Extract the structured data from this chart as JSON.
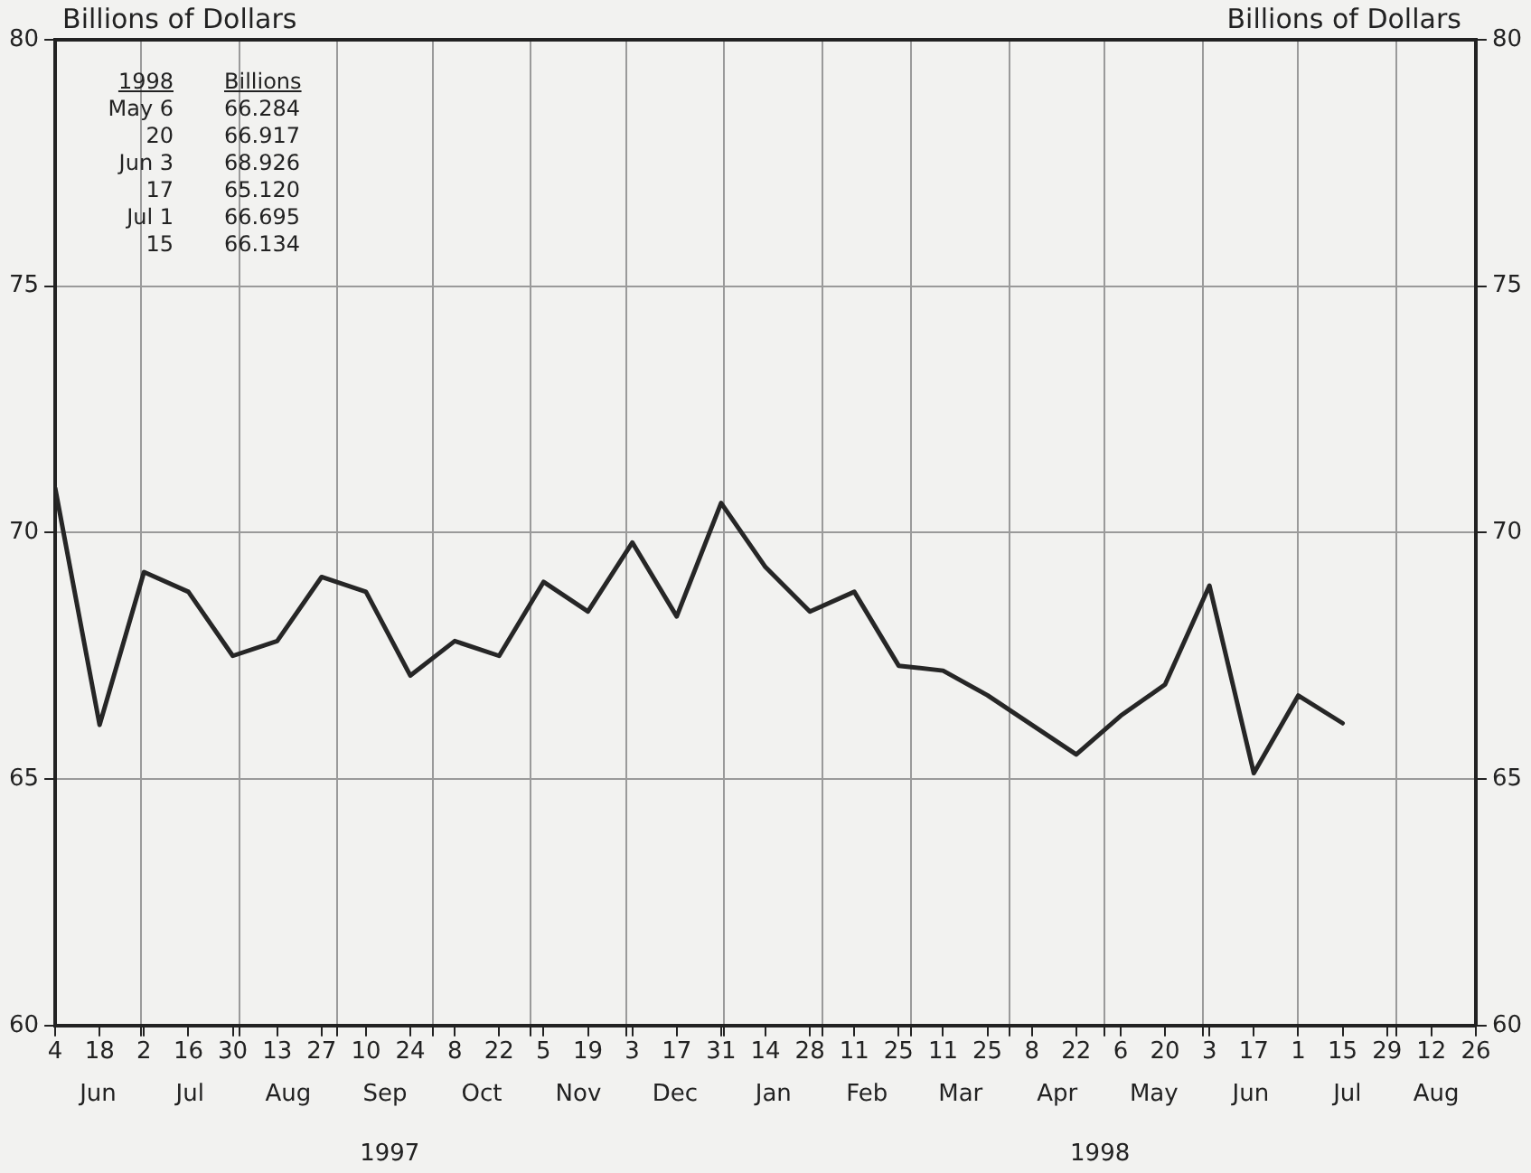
{
  "chart_data": {
    "type": "line",
    "ylabel": "Billions of Dollars",
    "y2label": "Billions of Dollars",
    "x": [
      "1997-06-04",
      "1997-06-18",
      "1997-07-02",
      "1997-07-16",
      "1997-07-30",
      "1997-08-13",
      "1997-08-27",
      "1997-09-10",
      "1997-09-24",
      "1997-10-08",
      "1997-10-22",
      "1997-11-05",
      "1997-11-19",
      "1997-12-03",
      "1997-12-17",
      "1997-12-31",
      "1998-01-14",
      "1998-01-28",
      "1998-02-11",
      "1998-02-25",
      "1998-03-11",
      "1998-03-25",
      "1998-04-08",
      "1998-04-22",
      "1998-05-06",
      "1998-05-20",
      "1998-06-03",
      "1998-06-17",
      "1998-07-01",
      "1998-07-15"
    ],
    "series": [
      {
        "color": "#262626",
        "values": [
          70.9,
          66.1,
          69.2,
          68.8,
          67.5,
          67.8,
          69.1,
          68.8,
          67.1,
          67.8,
          67.5,
          69.0,
          68.4,
          69.8,
          68.3,
          70.6,
          69.3,
          68.4,
          68.8,
          67.3,
          67.2,
          66.7,
          66.1,
          65.5,
          66.284,
          66.917,
          68.926,
          65.12,
          66.695,
          66.134
        ]
      }
    ],
    "xlim": [
      "1997-06-04",
      "1998-08-26"
    ],
    "xticks": [
      {
        "value": "1997-06-04",
        "label": "4"
      },
      {
        "value": "1997-06-18",
        "label": "18"
      },
      {
        "value": "1997-07-01",
        "label": null
      },
      {
        "value": "1997-07-02",
        "label": "2"
      },
      {
        "value": "1997-07-16",
        "label": "16"
      },
      {
        "value": "1997-07-30",
        "label": "30"
      },
      {
        "value": "1997-08-01",
        "label": null
      },
      {
        "value": "1997-08-13",
        "label": "13"
      },
      {
        "value": "1997-08-27",
        "label": "27"
      },
      {
        "value": "1997-09-01",
        "label": null
      },
      {
        "value": "1997-09-10",
        "label": "10"
      },
      {
        "value": "1997-09-24",
        "label": "24"
      },
      {
        "value": "1997-10-01",
        "label": null
      },
      {
        "value": "1997-10-08",
        "label": "8"
      },
      {
        "value": "1997-10-22",
        "label": "22"
      },
      {
        "value": "1997-11-01",
        "label": null
      },
      {
        "value": "1997-11-05",
        "label": "5"
      },
      {
        "value": "1997-11-19",
        "label": "19"
      },
      {
        "value": "1997-12-01",
        "label": null
      },
      {
        "value": "1997-12-03",
        "label": "3"
      },
      {
        "value": "1997-12-17",
        "label": "17"
      },
      {
        "value": "1997-12-31",
        "label": "31"
      },
      {
        "value": "1998-01-01",
        "label": null
      },
      {
        "value": "1998-01-14",
        "label": "14"
      },
      {
        "value": "1998-01-28",
        "label": "28"
      },
      {
        "value": "1998-02-01",
        "label": null
      },
      {
        "value": "1998-02-11",
        "label": "11"
      },
      {
        "value": "1998-02-25",
        "label": "25"
      },
      {
        "value": "1998-03-01",
        "label": null
      },
      {
        "value": "1998-03-11",
        "label": "11"
      },
      {
        "value": "1998-03-25",
        "label": "25"
      },
      {
        "value": "1998-04-01",
        "label": null
      },
      {
        "value": "1998-04-08",
        "label": "8"
      },
      {
        "value": "1998-04-22",
        "label": "22"
      },
      {
        "value": "1998-05-01",
        "label": null
      },
      {
        "value": "1998-05-06",
        "label": "6"
      },
      {
        "value": "1998-05-20",
        "label": "20"
      },
      {
        "value": "1998-06-01",
        "label": null
      },
      {
        "value": "1998-06-03",
        "label": "3"
      },
      {
        "value": "1998-06-17",
        "label": "17"
      },
      {
        "value": "1998-07-01",
        "label": "1"
      },
      {
        "value": "1998-07-15",
        "label": "15"
      },
      {
        "value": "1998-07-29",
        "label": "29"
      },
      {
        "value": "1998-08-01",
        "label": null
      },
      {
        "value": "1998-08-12",
        "label": "12"
      },
      {
        "value": "1998-08-26",
        "label": "26"
      }
    ],
    "ylim": [
      60,
      80
    ],
    "yticks": [
      60,
      65,
      70,
      75,
      80
    ],
    "y2lim": [
      60,
      80
    ],
    "y2ticks": [
      60,
      65,
      70,
      75,
      80
    ],
    "grid": true,
    "legend": false,
    "marker": "none",
    "line_style": "solid",
    "annotations": [
      "1998",
      "Billions",
      "May 6",
      "66.284",
      "20",
      "66.917",
      "Jun 3",
      "68.926",
      "17",
      "65.120",
      "Jul 1",
      "66.695",
      "15",
      "66.134",
      "Jun",
      "Jul",
      "Aug",
      "Sep",
      "Oct",
      "Nov",
      "Dec",
      "Jan",
      "Feb",
      "Mar",
      "Apr",
      "May",
      "Jun",
      "Jul",
      "Aug",
      "1997",
      "1998"
    ]
  }
}
